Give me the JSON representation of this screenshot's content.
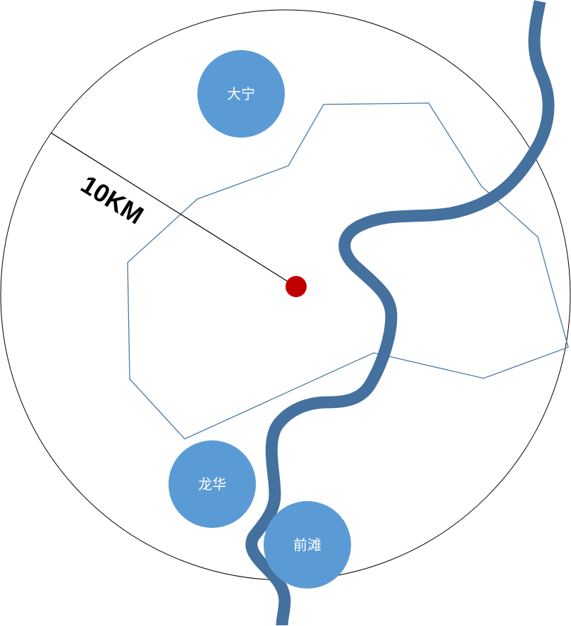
{
  "map": {
    "radius_label": "10KM",
    "places": [
      {
        "name": "大宁"
      },
      {
        "name": "龙华"
      },
      {
        "name": "前滩"
      }
    ]
  },
  "colors": {
    "river": "#44719e",
    "place_fill": "#5b9bd5",
    "boundary": "#4a7aa8",
    "center_dot": "#c00000",
    "circle": "#000000",
    "place_text": "#ffffff"
  }
}
